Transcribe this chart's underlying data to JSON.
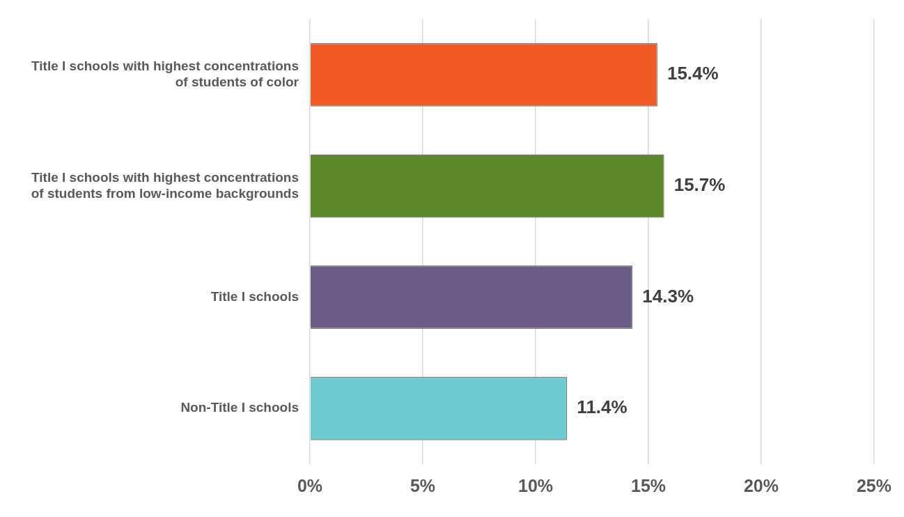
{
  "chart_data": {
    "type": "bar",
    "orientation": "horizontal",
    "categories": [
      "Title I schools with highest concentrations of students of color",
      "Title I schools with highest concentrations of students from low-income backgrounds",
      "Title I schools",
      "Non-Title I schools"
    ],
    "values": [
      15.4,
      15.7,
      14.3,
      11.4
    ],
    "colors": [
      "#f15a22",
      "#5b8829",
      "#6a5b87",
      "#6dcbd2"
    ],
    "xlim": [
      0,
      25
    ],
    "xticks": [
      {
        "value": 0,
        "label": "0%"
      },
      {
        "value": 5,
        "label": "5%"
      },
      {
        "value": 10,
        "label": "10%"
      },
      {
        "value": 15,
        "label": "15%"
      },
      {
        "value": 20,
        "label": "20%"
      },
      {
        "value": 25,
        "label": "25%"
      }
    ],
    "value_labels": [
      "15.4%",
      "15.7%",
      "14.3%",
      "11.4%"
    ],
    "grid": "x",
    "legend": false
  }
}
